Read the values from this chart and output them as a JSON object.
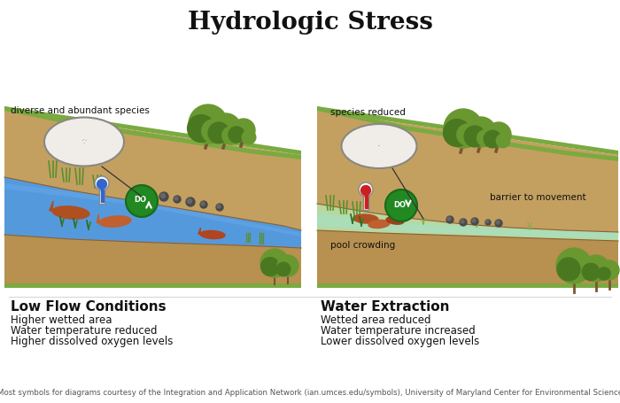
{
  "title": "Hydrologic Stress",
  "title_fontsize": 20,
  "title_fontweight": "bold",
  "bg_color": "#ffffff",
  "left_panel_title": "Low Flow Conditions",
  "right_panel_title": "Water Extraction",
  "left_bullets": [
    "Higher wetted area",
    "Water temperature reduced",
    "Higher dissolved oxygen levels"
  ],
  "right_bullets": [
    "Wetted area reduced",
    "Water temperature increased",
    "Lower dissolved oxygen levels"
  ],
  "left_label_1": "diverse and abundant species",
  "right_label_1": "species reduced",
  "right_label_2": "barrier to movement",
  "right_label_3": "pool crowding",
  "footer": "Most symbols for diagrams courtesy of the Integration and Application Network (ian.umces.edu/symbols), University of Maryland Center for Environmental Science",
  "left_water_color": "#5599dd",
  "left_water_color2": "#6aabee",
  "right_water_color": "#aaddb8",
  "right_water_color2": "#c0eaca",
  "ground_color": "#c4a060",
  "ground_color2": "#b89050",
  "ground_dark": "#9a7840",
  "green_top": "#7aaa40",
  "green_veg": "#5a9030",
  "tree_color": "#6a9830",
  "tree_dark": "#4a7820",
  "panel_title_fontsize": 11,
  "panel_title_fontweight": "bold",
  "bullet_fontsize": 8.5,
  "footer_fontsize": 6.2,
  "label_fontsize": 7.5
}
